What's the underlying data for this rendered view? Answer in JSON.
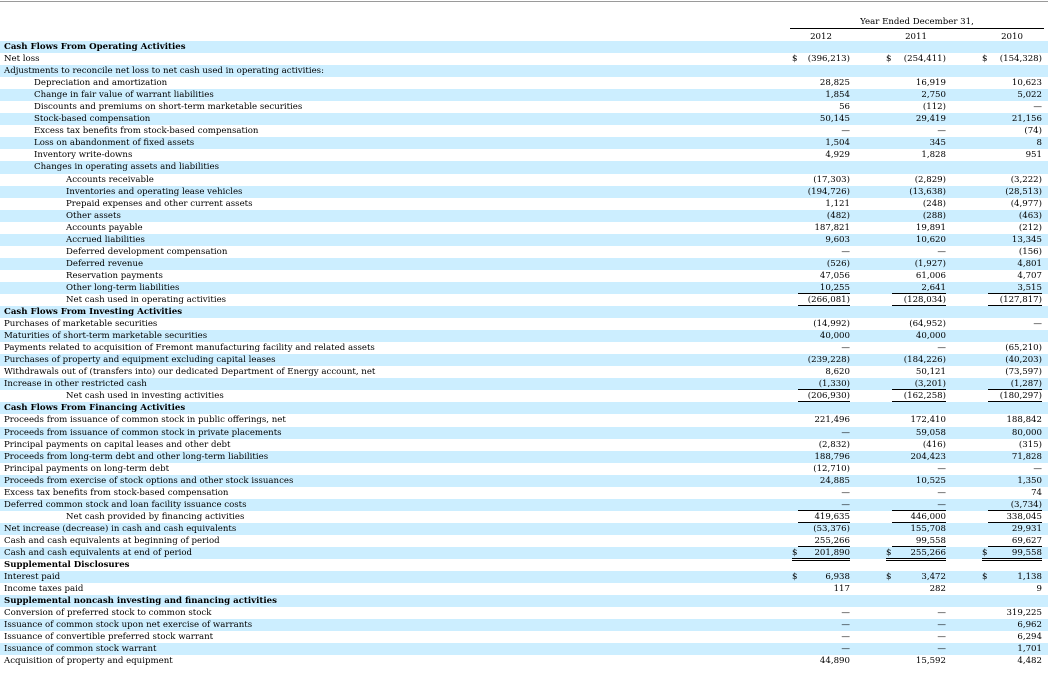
{
  "header": {
    "period_label": "Year Ended December 31,",
    "years": [
      "2012",
      "2011",
      "2010"
    ]
  },
  "rows": [
    {
      "label": "Cash Flows From Operating Activities",
      "bold": true,
      "indent": 0,
      "vals": [
        "",
        "",
        ""
      ]
    },
    {
      "label": "Net loss",
      "indent": 0,
      "cur": true,
      "vals": [
        "(396,213)",
        "(254,411)",
        "(154,328)"
      ]
    },
    {
      "label": "Adjustments to reconcile net loss to net cash used in operating activities:",
      "indent": 0,
      "vals": [
        "",
        "",
        ""
      ]
    },
    {
      "label": "Depreciation and amortization",
      "indent": 1,
      "vals": [
        "28,825",
        "16,919",
        "10,623"
      ]
    },
    {
      "label": "Change in fair value of warrant liabilities",
      "indent": 1,
      "vals": [
        "1,854",
        "2,750",
        "5,022"
      ]
    },
    {
      "label": "Discounts and premiums on short-term marketable securities",
      "indent": 1,
      "vals": [
        "56",
        "(112)",
        "—"
      ]
    },
    {
      "label": "Stock-based compensation",
      "indent": 1,
      "vals": [
        "50,145",
        "29,419",
        "21,156"
      ]
    },
    {
      "label": "Excess tax benefits from stock-based compensation",
      "indent": 1,
      "vals": [
        "—",
        "—",
        "(74)"
      ]
    },
    {
      "label": "Loss on abandonment of fixed assets",
      "indent": 1,
      "vals": [
        "1,504",
        "345",
        "8"
      ]
    },
    {
      "label": "Inventory write-downs",
      "indent": 1,
      "vals": [
        "4,929",
        "1,828",
        "951"
      ]
    },
    {
      "label": "Changes in operating assets and liabilities",
      "indent": 1,
      "vals": [
        "",
        "",
        ""
      ]
    },
    {
      "label": "Accounts receivable",
      "indent": 2,
      "vals": [
        "(17,303)",
        "(2,829)",
        "(3,222)"
      ]
    },
    {
      "label": "Inventories and operating lease vehicles",
      "indent": 2,
      "vals": [
        "(194,726)",
        "(13,638)",
        "(28,513)"
      ]
    },
    {
      "label": "Prepaid expenses and other current assets",
      "indent": 2,
      "vals": [
        "1,121",
        "(248)",
        "(4,977)"
      ]
    },
    {
      "label": "Other assets",
      "indent": 2,
      "vals": [
        "(482)",
        "(288)",
        "(463)"
      ]
    },
    {
      "label": "Accounts payable",
      "indent": 2,
      "vals": [
        "187,821",
        "19,891",
        "(212)"
      ]
    },
    {
      "label": "Accrued liabilities",
      "indent": 2,
      "vals": [
        "9,603",
        "10,620",
        "13,345"
      ]
    },
    {
      "label": "Deferred development compensation",
      "indent": 2,
      "vals": [
        "—",
        "—",
        "(156)"
      ]
    },
    {
      "label": "Deferred revenue",
      "indent": 2,
      "vals": [
        "(526)",
        "(1,927)",
        "4,801"
      ]
    },
    {
      "label": "Reservation payments",
      "indent": 2,
      "vals": [
        "47,056",
        "61,006",
        "4,707"
      ]
    },
    {
      "label": "Other long-term liabilities",
      "indent": 2,
      "ul": true,
      "vals": [
        "10,255",
        "2,641",
        "3,515"
      ]
    },
    {
      "label": "Net cash used in operating activities",
      "indent": 2,
      "ul": true,
      "vals": [
        "(266,081)",
        "(128,034)",
        "(127,817)"
      ]
    },
    {
      "label": "Cash Flows From Investing Activities",
      "bold": true,
      "indent": 0,
      "vals": [
        "",
        "",
        ""
      ]
    },
    {
      "label": "Purchases of marketable securities",
      "indent": 0,
      "vals": [
        "(14,992)",
        "(64,952)",
        "—"
      ]
    },
    {
      "label": "Maturities of short-term marketable securities",
      "indent": 0,
      "vals": [
        "40,000",
        "40,000",
        ""
      ]
    },
    {
      "label": "Payments related to acquisition of Fremont manufacturing facility and related assets",
      "indent": 0,
      "vals": [
        "—",
        "—",
        "(65,210)"
      ]
    },
    {
      "label": "Purchases of property and equipment excluding capital leases",
      "indent": 0,
      "vals": [
        "(239,228)",
        "(184,226)",
        "(40,203)"
      ]
    },
    {
      "label": "Withdrawals out of (transfers into) our dedicated Department of Energy account, net",
      "indent": 0,
      "vals": [
        "8,620",
        "50,121",
        "(73,597)"
      ]
    },
    {
      "label": "Increase in other restricted cash",
      "indent": 0,
      "ul": true,
      "vals": [
        "(1,330)",
        "(3,201)",
        "(1,287)"
      ]
    },
    {
      "label": "Net cash used in investing activities",
      "indent": 2,
      "ul": true,
      "vals": [
        "(206,930)",
        "(162,258)",
        "(180,297)"
      ]
    },
    {
      "label": "Cash Flows From Financing Activities",
      "bold": true,
      "indent": 0,
      "vals": [
        "",
        "",
        ""
      ]
    },
    {
      "label": "Proceeds from issuance of common stock in public offerings, net",
      "indent": 0,
      "vals": [
        "221,496",
        "172,410",
        "188,842"
      ]
    },
    {
      "label": "Proceeds from issuance of common stock in private placements",
      "indent": 0,
      "vals": [
        "—",
        "59,058",
        "80,000"
      ]
    },
    {
      "label": "Principal payments on capital leases and other debt",
      "indent": 0,
      "vals": [
        "(2,832)",
        "(416)",
        "(315)"
      ]
    },
    {
      "label": "Proceeds from long-term debt and other long-term liabilities",
      "indent": 0,
      "vals": [
        "188,796",
        "204,423",
        "71,828"
      ]
    },
    {
      "label": "Principal payments on long-term debt",
      "indent": 0,
      "vals": [
        "(12,710)",
        "—",
        "—"
      ]
    },
    {
      "label": "Proceeds from exercise of stock options and other stock issuances",
      "indent": 0,
      "vals": [
        "24,885",
        "10,525",
        "1,350"
      ]
    },
    {
      "label": "Excess tax benefits from stock-based compensation",
      "indent": 0,
      "vals": [
        "—",
        "—",
        "74"
      ]
    },
    {
      "label": "Deferred common stock and loan facility issuance costs",
      "indent": 0,
      "ul": true,
      "vals": [
        "—",
        "—",
        "(3,734)"
      ]
    },
    {
      "label": "Net cash provided by financing activities",
      "indent": 2,
      "ul": true,
      "vals": [
        "419,635",
        "446,000",
        "338,045"
      ]
    },
    {
      "label": "Net increase (decrease) in cash and cash equivalents",
      "indent": 0,
      "vals": [
        "(53,376)",
        "155,708",
        "29,931"
      ]
    },
    {
      "label": "Cash and cash equivalents at beginning of period",
      "indent": 0,
      "ul": true,
      "vals": [
        "255,266",
        "99,558",
        "69,627"
      ]
    },
    {
      "label": "Cash and cash equivalents at end of period",
      "indent": 0,
      "cur": true,
      "dbl": true,
      "vals": [
        "201,890",
        "255,266",
        "99,558"
      ]
    },
    {
      "label": "Supplemental Disclosures",
      "bold": true,
      "indent": 0,
      "vals": [
        "",
        "",
        ""
      ]
    },
    {
      "label": "Interest paid",
      "indent": 0,
      "cur": true,
      "vals": [
        "6,938",
        "3,472",
        "1,138"
      ]
    },
    {
      "label": "Income taxes paid",
      "indent": 0,
      "vals": [
        "117",
        "282",
        "9"
      ]
    },
    {
      "label": "Supplemental noncash investing and financing activities",
      "bold": true,
      "indent": 0,
      "vals": [
        "",
        "",
        ""
      ]
    },
    {
      "label": "Conversion of preferred stock to common stock",
      "indent": 0,
      "vals": [
        "—",
        "—",
        "319,225"
      ]
    },
    {
      "label": "Issuance of common stock upon net exercise of warrants",
      "indent": 0,
      "vals": [
        "—",
        "—",
        "6,962"
      ]
    },
    {
      "label": "Issuance of convertible preferred stock warrant",
      "indent": 0,
      "vals": [
        "—",
        "—",
        "6,294"
      ]
    },
    {
      "label": "Issuance of common stock warrant",
      "indent": 0,
      "vals": [
        "—",
        "—",
        "1,701"
      ]
    },
    {
      "label": "Acquisition of property and equipment",
      "indent": 0,
      "vals": [
        "44,890",
        "15,592",
        "4,482"
      ]
    }
  ],
  "currency_symbol": "$"
}
